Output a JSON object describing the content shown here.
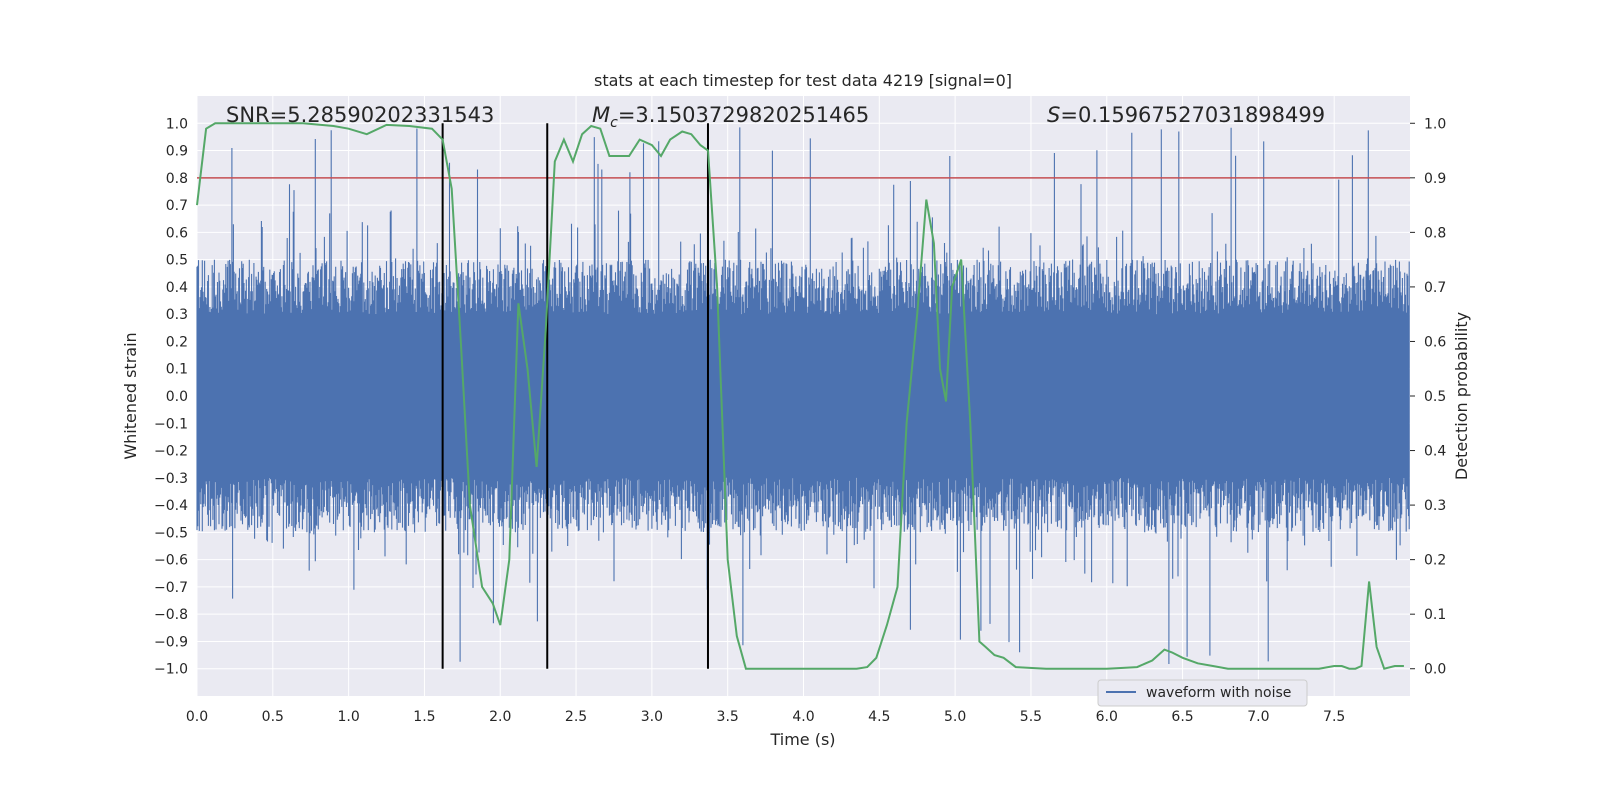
{
  "chart_data": {
    "type": "line",
    "title": "stats at each timestep for test data 4219 [signal=0]",
    "xlabel": "Time (s)",
    "ylabel": "Whitened strain",
    "y2label": "Detection probability",
    "xlim": [
      0.0,
      8.0
    ],
    "ylim": [
      -1.1,
      1.1
    ],
    "y2lim": [
      -0.05,
      1.05
    ],
    "xticks": [
      "0.0",
      "0.5",
      "1.0",
      "1.5",
      "2.0",
      "2.5",
      "3.0",
      "3.5",
      "4.0",
      "4.5",
      "5.0",
      "5.5",
      "6.0",
      "6.5",
      "7.0",
      "7.5"
    ],
    "yticks": [
      "-1.0",
      "-0.9",
      "-0.8",
      "-0.7",
      "-0.6",
      "-0.5",
      "-0.4",
      "-0.3",
      "-0.2",
      "-0.1",
      "0.0",
      "0.1",
      "0.2",
      "0.3",
      "0.4",
      "0.5",
      "0.6",
      "0.7",
      "0.8",
      "0.9",
      "1.0"
    ],
    "y2ticks": [
      "0.0",
      "0.1",
      "0.2",
      "0.3",
      "0.4",
      "0.5",
      "0.6",
      "0.7",
      "0.8",
      "0.9",
      "1.0"
    ],
    "grid": true,
    "legend_placement": "lower-center",
    "annotations": {
      "snr": "SNR=5.28590202331543",
      "mc_symbol": "M",
      "mc_sub": "c",
      "mc_value": "=3.1503729820251465",
      "s_symbol": "S",
      "s_value": "=0.15967527031898499"
    },
    "threshold": {
      "y2": 0.9,
      "color": "#c44e52"
    },
    "vlines": [
      1.62,
      2.31,
      3.37
    ],
    "series": [
      {
        "name": "waveform with noise",
        "color": "#4c72b0",
        "kind": "noise",
        "n_samples": 1600,
        "typical_amplitude": [
          0.3,
          0.5
        ],
        "peak_amplitude": 1.0
      },
      {
        "color": "#55a868",
        "axis": "right",
        "x": [
          0.0,
          0.06,
          0.12,
          0.3,
          0.5,
          0.7,
          0.9,
          1.0,
          1.12,
          1.25,
          1.4,
          1.55,
          1.62,
          1.68,
          1.74,
          1.8,
          1.88,
          1.95,
          2.0,
          2.06,
          2.12,
          2.18,
          2.24,
          2.3,
          2.36,
          2.42,
          2.48,
          2.54,
          2.6,
          2.66,
          2.72,
          2.78,
          2.85,
          2.92,
          3.0,
          3.06,
          3.12,
          3.2,
          3.26,
          3.32,
          3.37,
          3.43,
          3.5,
          3.56,
          3.62,
          3.7,
          3.85,
          4.0,
          4.2,
          4.35,
          4.42,
          4.48,
          4.55,
          4.62,
          4.68,
          4.75,
          4.81,
          4.86,
          4.9,
          4.94,
          4.98,
          5.04,
          5.1,
          5.16,
          5.2,
          5.26,
          5.32,
          5.4,
          5.6,
          5.8,
          6.0,
          6.2,
          6.3,
          6.38,
          6.43,
          6.5,
          6.6,
          6.7,
          6.8,
          7.0,
          7.2,
          7.4,
          7.5,
          7.55,
          7.6,
          7.64,
          7.68,
          7.73,
          7.78,
          7.83,
          7.9,
          7.96
        ],
        "y": [
          0.85,
          0.99,
          1.0,
          1.0,
          1.0,
          1.0,
          0.995,
          0.99,
          0.98,
          0.997,
          0.995,
          0.99,
          0.97,
          0.88,
          0.6,
          0.3,
          0.15,
          0.12,
          0.08,
          0.2,
          0.67,
          0.55,
          0.37,
          0.62,
          0.93,
          0.97,
          0.93,
          0.98,
          0.995,
          0.99,
          0.94,
          0.94,
          0.94,
          0.97,
          0.96,
          0.94,
          0.97,
          0.985,
          0.98,
          0.96,
          0.95,
          0.7,
          0.2,
          0.06,
          0.0,
          0.0,
          0.0,
          0.0,
          0.0,
          0.0,
          0.003,
          0.02,
          0.08,
          0.15,
          0.45,
          0.65,
          0.86,
          0.78,
          0.55,
          0.49,
          0.7,
          0.75,
          0.45,
          0.05,
          0.04,
          0.025,
          0.02,
          0.003,
          0.0,
          0.0,
          0.0,
          0.003,
          0.015,
          0.035,
          0.03,
          0.02,
          0.01,
          0.005,
          0.0,
          0.0,
          0.0,
          0.0,
          0.005,
          0.005,
          0.0,
          0.0,
          0.005,
          0.16,
          0.04,
          0.0,
          0.005,
          0.005
        ]
      }
    ]
  }
}
